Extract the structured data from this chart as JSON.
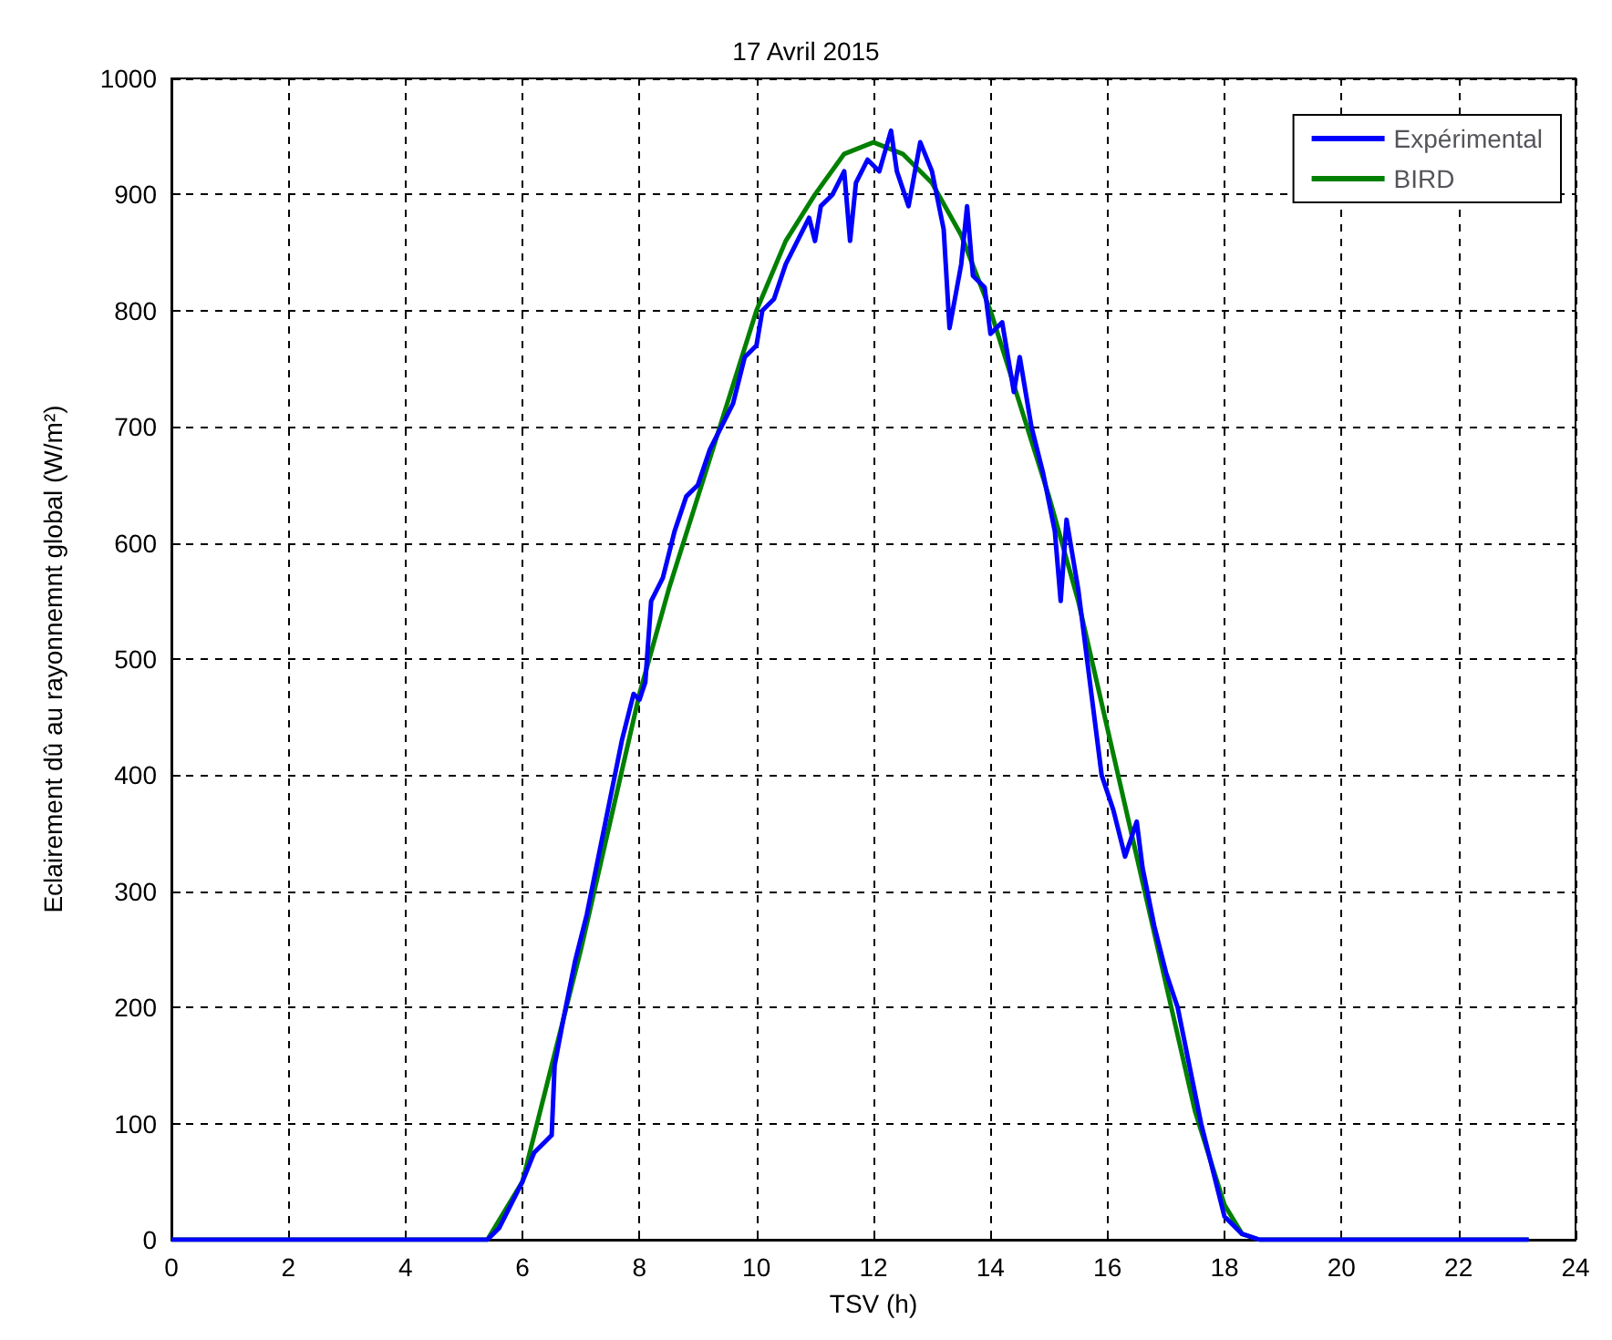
{
  "chart_data": {
    "type": "line",
    "title": "17 Avril 2015",
    "xlabel": "TSV (h)",
    "ylabel": "Eclairement dû au rayonnemnt global (W/m²)",
    "xlim": [
      0,
      24
    ],
    "xticks": [
      0,
      2,
      4,
      6,
      8,
      10,
      12,
      14,
      16,
      18,
      20,
      22,
      24
    ],
    "ylim": [
      0,
      1000
    ],
    "yticks": [
      0,
      100,
      200,
      300,
      400,
      500,
      600,
      700,
      800,
      900,
      1000
    ],
    "grid": true,
    "legend": "top right",
    "marker": "none",
    "line_style": "solid",
    "series": [
      {
        "name": "Expérimental",
        "color": "#0000ff",
        "x": [
          0,
          5.4,
          5.6,
          5.8,
          6.0,
          6.2,
          6.4,
          6.5,
          6.55,
          6.7,
          6.9,
          7.1,
          7.3,
          7.5,
          7.7,
          7.9,
          8.0,
          8.1,
          8.2,
          8.4,
          8.6,
          8.8,
          9.0,
          9.2,
          9.4,
          9.6,
          9.8,
          10.0,
          10.1,
          10.3,
          10.5,
          10.7,
          10.9,
          11.0,
          11.1,
          11.3,
          11.5,
          11.6,
          11.7,
          11.9,
          12.1,
          12.3,
          12.4,
          12.6,
          12.8,
          13.0,
          13.2,
          13.3,
          13.5,
          13.6,
          13.7,
          13.9,
          14.0,
          14.2,
          14.4,
          14.5,
          14.7,
          14.9,
          15.1,
          15.2,
          15.3,
          15.5,
          15.7,
          15.9,
          16.1,
          16.3,
          16.5,
          16.6,
          16.8,
          17.0,
          17.2,
          17.4,
          17.6,
          17.8,
          18.0,
          18.3,
          18.6,
          23.2
        ],
        "values": [
          0,
          0,
          10,
          30,
          50,
          75,
          85,
          90,
          150,
          190,
          240,
          280,
          330,
          380,
          430,
          470,
          465,
          480,
          550,
          570,
          610,
          640,
          650,
          680,
          700,
          720,
          760,
          770,
          800,
          810,
          840,
          860,
          880,
          860,
          890,
          900,
          920,
          860,
          910,
          930,
          920,
          955,
          920,
          890,
          945,
          920,
          870,
          785,
          840,
          890,
          830,
          820,
          780,
          790,
          730,
          760,
          700,
          660,
          610,
          550,
          620,
          560,
          480,
          400,
          370,
          330,
          360,
          320,
          270,
          230,
          200,
          150,
          100,
          60,
          20,
          5,
          0,
          0
        ]
      },
      {
        "name": "BIRD",
        "color": "#008000",
        "x": [
          0,
          5.4,
          6,
          6.5,
          7,
          7.5,
          8,
          8.5,
          9,
          9.5,
          10,
          10.5,
          11,
          11.5,
          12,
          12.5,
          13,
          13.5,
          14,
          14.5,
          15,
          15.5,
          16,
          16.5,
          17,
          17.5,
          18,
          18.3,
          18.6,
          23.2
        ],
        "values": [
          0,
          0,
          50,
          150,
          250,
          360,
          470,
          560,
          640,
          720,
          800,
          860,
          900,
          935,
          945,
          935,
          910,
          865,
          800,
          720,
          640,
          550,
          440,
          330,
          220,
          110,
          30,
          5,
          0,
          0
        ]
      }
    ]
  }
}
